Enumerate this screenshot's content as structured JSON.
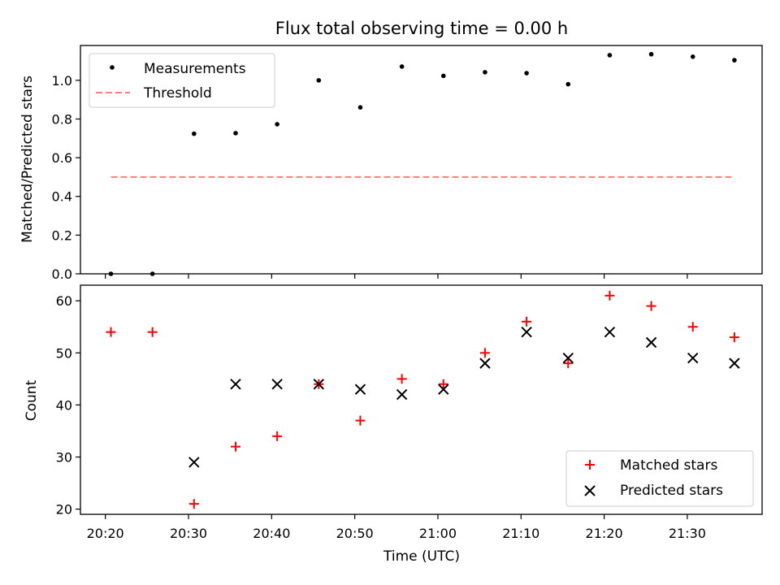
{
  "chart_data": [
    {
      "type": "scatter",
      "title": "Flux total observing time = 0.00 h",
      "xlabel": "",
      "ylabel": "Matched/Predicted stars",
      "xlim": [
        "20:17",
        "21:39"
      ],
      "ylim": [
        0,
        1.18
      ],
      "yticks": [
        0.0,
        0.2,
        0.4,
        0.6,
        0.8,
        1.0
      ],
      "ytick_labels": [
        "0.0",
        "0.2",
        "0.4",
        "0.6",
        "0.8",
        "1.0"
      ],
      "x_tick_labels_shown": false,
      "grid": false,
      "legend": "top-left",
      "series": [
        {
          "name": "Measurements",
          "kind": "scatter",
          "marker": "dot",
          "color": "#000000",
          "x": [
            "20:20:40",
            "20:25:40",
            "20:30:40",
            "20:35:40",
            "20:40:40",
            "20:45:40",
            "20:50:40",
            "20:55:40",
            "21:00:40",
            "21:05:40",
            "21:10:40",
            "21:15:40",
            "21:20:40",
            "21:25:40",
            "21:30:40",
            "21:35:40"
          ],
          "y": [
            0.0,
            0.0,
            0.724,
            0.727,
            0.773,
            1.0,
            0.86,
            1.071,
            1.023,
            1.042,
            1.037,
            0.98,
            1.13,
            1.135,
            1.122,
            1.104
          ]
        },
        {
          "name": "Threshold",
          "kind": "line",
          "style": "dashed",
          "color": "#ff7f7f",
          "x": [
            "20:20:40",
            "21:35:40"
          ],
          "y": [
            0.5,
            0.5
          ]
        }
      ]
    },
    {
      "type": "scatter",
      "title": "",
      "xlabel": "Time (UTC)",
      "ylabel": "Count",
      "xlim": [
        "20:17",
        "21:39"
      ],
      "ylim": [
        19,
        63
      ],
      "yticks": [
        20,
        30,
        40,
        50,
        60
      ],
      "ytick_labels": [
        "20",
        "30",
        "40",
        "50",
        "60"
      ],
      "xticks": [
        "20:20",
        "20:30",
        "20:40",
        "20:50",
        "21:00",
        "21:10",
        "21:20",
        "21:30"
      ],
      "grid": false,
      "legend": "bottom-right",
      "series": [
        {
          "name": "Matched stars",
          "kind": "scatter",
          "marker": "plus",
          "color": "#ff0000",
          "x": [
            "20:20:40",
            "20:25:40",
            "20:30:40",
            "20:35:40",
            "20:40:40",
            "20:45:40",
            "20:50:40",
            "20:55:40",
            "21:00:40",
            "21:05:40",
            "21:10:40",
            "21:15:40",
            "21:20:40",
            "21:25:40",
            "21:30:40",
            "21:35:40"
          ],
          "y": [
            54,
            54,
            21,
            32,
            34,
            44,
            37,
            45,
            44,
            50,
            56,
            48,
            61,
            59,
            55,
            53
          ]
        },
        {
          "name": "Predicted stars",
          "kind": "scatter",
          "marker": "x",
          "color": "#000000",
          "x": [
            "20:30:40",
            "20:35:40",
            "20:40:40",
            "20:45:40",
            "20:50:40",
            "20:55:40",
            "21:00:40",
            "21:05:40",
            "21:10:40",
            "21:15:40",
            "21:20:40",
            "21:25:40",
            "21:30:40",
            "21:35:40"
          ],
          "y": [
            29,
            44,
            44,
            44,
            43,
            42,
            43,
            48,
            54,
            49,
            54,
            52,
            49,
            48
          ]
        }
      ]
    }
  ]
}
